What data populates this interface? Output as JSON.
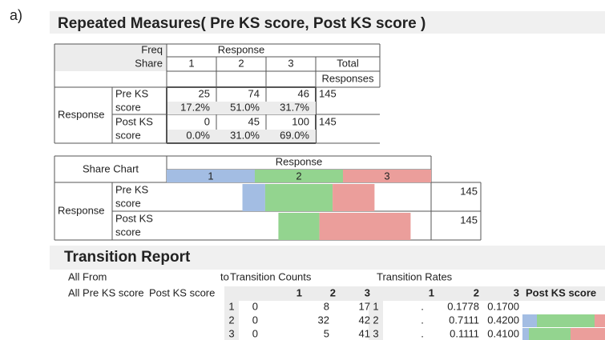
{
  "panel_label": "a)",
  "title": "Repeated Measures( Pre KS score, Post KS score )",
  "freq_table": {
    "freq_label": "Freq",
    "share_label": "Share",
    "response_header": "Response",
    "columns": [
      1,
      2,
      3
    ],
    "total_label": [
      "Total",
      "Responses"
    ],
    "row_group": "Response",
    "rows": [
      {
        "label": [
          "Pre KS",
          "score"
        ],
        "counts": [
          25,
          74,
          46
        ],
        "shares": [
          17.2,
          51.0,
          31.7
        ],
        "share_labels": [
          "17.2%",
          "51.0%",
          "31.7%"
        ],
        "total": 145
      },
      {
        "label": [
          "Post KS",
          "score"
        ],
        "counts": [
          0,
          45,
          100
        ],
        "shares": [
          0.0,
          31.0,
          69.0
        ],
        "share_labels": [
          "0.0%",
          "31.0%",
          "69.0%"
        ],
        "total": 145
      }
    ]
  },
  "share_chart": {
    "title": "Share Chart",
    "response_header": "Response",
    "columns": [
      1,
      2,
      3
    ],
    "colors": [
      "#a3bde3",
      "#93d48f",
      "#eb9e9b"
    ],
    "row_group": "Response",
    "rows": [
      {
        "label": [
          "Pre KS",
          "score"
        ],
        "total": 145
      },
      {
        "label": [
          "Post KS",
          "score"
        ],
        "total": 145
      }
    ]
  },
  "transition_report": {
    "title": "Transition Report",
    "from_label": "All From",
    "to_label": "to",
    "from_name": "All Pre KS score",
    "to_name": "Post KS score",
    "counts_title": "Transition Counts",
    "rates_title": "Transition Rates",
    "count_headers": [
      1,
      2,
      3
    ],
    "rate_headers": [
      1,
      2,
      3
    ],
    "chart_header": "Post KS score",
    "rows": [
      {
        "label": 1,
        "counts": [
          0,
          8,
          17
        ],
        "rate_label": 1,
        "rates": [
          ".",
          "0.1778",
          "0.1700"
        ]
      },
      {
        "label": 2,
        "counts": [
          0,
          32,
          42
        ],
        "rate_label": 2,
        "rates": [
          ".",
          "0.7111",
          "0.4200"
        ]
      },
      {
        "label": 3,
        "counts": [
          0,
          5,
          41
        ],
        "rate_label": 3,
        "rates": [
          ".",
          "0.1111",
          "0.4100"
        ]
      }
    ]
  }
}
